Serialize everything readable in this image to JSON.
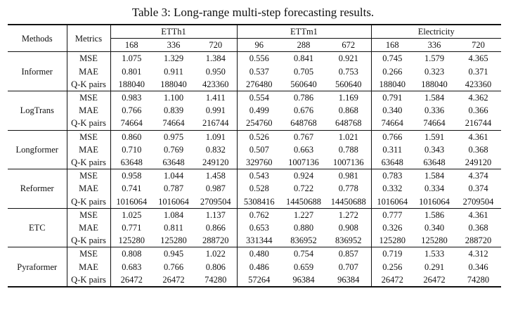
{
  "caption": "Table 3: Long-range multi-step forecasting results.",
  "headers": {
    "methods": "Methods",
    "metrics": "Metrics",
    "datasets": [
      {
        "name": "ETTh1",
        "horizons": [
          "168",
          "336",
          "720"
        ]
      },
      {
        "name": "ETTm1",
        "horizons": [
          "96",
          "288",
          "672"
        ]
      },
      {
        "name": "Electricity",
        "horizons": [
          "168",
          "336",
          "720"
        ]
      }
    ]
  },
  "rows": [
    {
      "method": "Informer",
      "bold": false,
      "metrics": [
        {
          "name": "MSE",
          "values": [
            "1.075",
            "1.329",
            "1.384",
            "0.556",
            "0.841",
            "0.921",
            "0.745",
            "1.579",
            "4.365"
          ]
        },
        {
          "name": "MAE",
          "values": [
            "0.801",
            "0.911",
            "0.950",
            "0.537",
            "0.705",
            "0.753",
            "0.266",
            "0.323",
            "0.371"
          ]
        },
        {
          "name": "Q-K pairs",
          "values": [
            "188040",
            "188040",
            "423360",
            "276480",
            "560640",
            "560640",
            "188040",
            "188040",
            "423360"
          ]
        }
      ]
    },
    {
      "method": "LogTrans",
      "bold": false,
      "metrics": [
        {
          "name": "MSE",
          "values": [
            "0.983",
            "1.100",
            "1.411",
            "0.554",
            "0.786",
            "1.169",
            "0.791",
            "1.584",
            "4.362"
          ]
        },
        {
          "name": "MAE",
          "values": [
            "0.766",
            "0.839",
            "0.991",
            "0.499",
            "0.676",
            "0.868",
            "0.340",
            "0.336",
            "0.366"
          ]
        },
        {
          "name": "Q-K pairs",
          "values": [
            "74664",
            "74664",
            "216744",
            "254760",
            "648768",
            "648768",
            "74664",
            "74664",
            "216744"
          ]
        }
      ]
    },
    {
      "method": "Longformer",
      "bold": false,
      "metrics": [
        {
          "name": "MSE",
          "values": [
            "0.860",
            "0.975",
            "1.091",
            "0.526",
            "0.767",
            "1.021",
            "0.766",
            "1.591",
            "4.361"
          ]
        },
        {
          "name": "MAE",
          "values": [
            "0.710",
            "0.769",
            "0.832",
            "0.507",
            "0.663",
            "0.788",
            "0.311",
            "0.343",
            "0.368"
          ]
        },
        {
          "name": "Q-K pairs",
          "values": [
            "63648",
            "63648",
            "249120",
            "329760",
            "1007136",
            "1007136",
            "63648",
            "63648",
            "249120"
          ]
        }
      ]
    },
    {
      "method": "Reformer",
      "bold": false,
      "metrics": [
        {
          "name": "MSE",
          "values": [
            "0.958",
            "1.044",
            "1.458",
            "0.543",
            "0.924",
            "0.981",
            "0.783",
            "1.584",
            "4.374"
          ]
        },
        {
          "name": "MAE",
          "values": [
            "0.741",
            "0.787",
            "0.987",
            "0.528",
            "0.722",
            "0.778",
            "0.332",
            "0.334",
            "0.374"
          ]
        },
        {
          "name": "Q-K pairs",
          "values": [
            "1016064",
            "1016064",
            "2709504",
            "5308416",
            "14450688",
            "14450688",
            "1016064",
            "1016064",
            "2709504"
          ]
        }
      ]
    },
    {
      "method": "ETC",
      "bold": false,
      "metrics": [
        {
          "name": "MSE",
          "values": [
            "1.025",
            "1.084",
            "1.137",
            "0.762",
            "1.227",
            "1.272",
            "0.777",
            "1.586",
            "4.361"
          ]
        },
        {
          "name": "MAE",
          "values": [
            "0.771",
            "0.811",
            "0.866",
            "0.653",
            "0.880",
            "0.908",
            "0.326",
            "0.340",
            "0.368"
          ]
        },
        {
          "name": "Q-K pairs",
          "values": [
            "125280",
            "125280",
            "288720",
            "331344",
            "836952",
            "836952",
            "125280",
            "125280",
            "288720"
          ]
        }
      ]
    },
    {
      "method": "Pyraformer",
      "bold": true,
      "metrics": [
        {
          "name": "MSE",
          "values": [
            "0.808",
            "0.945",
            "1.022",
            "0.480",
            "0.754",
            "0.857",
            "0.719",
            "1.533",
            "4.312"
          ]
        },
        {
          "name": "MAE",
          "values": [
            "0.683",
            "0.766",
            "0.806",
            "0.486",
            "0.659",
            "0.707",
            "0.256",
            "0.291",
            "0.346"
          ]
        },
        {
          "name": "Q-K pairs",
          "values": [
            "26472",
            "26472",
            "74280",
            "57264",
            "96384",
            "96384",
            "26472",
            "26472",
            "74280"
          ]
        }
      ]
    }
  ]
}
